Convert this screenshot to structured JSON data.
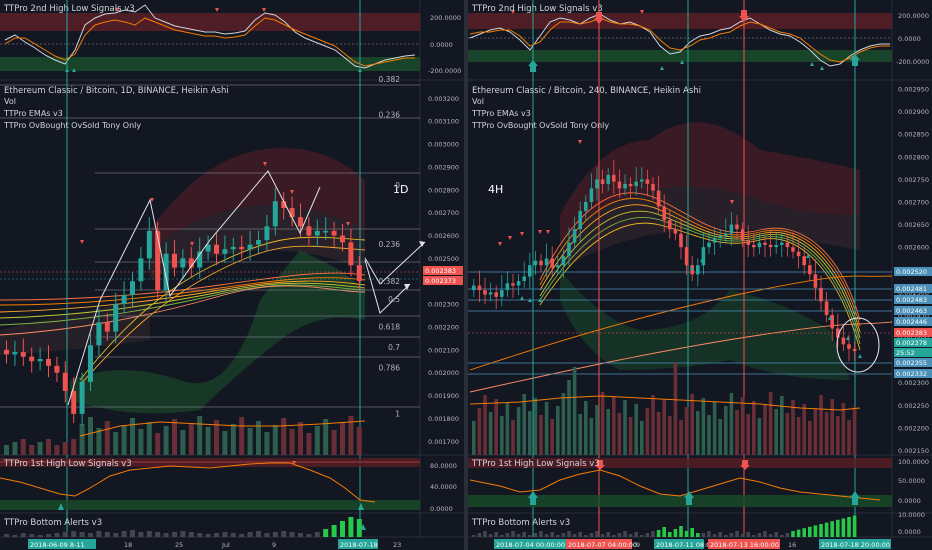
{
  "left": {
    "top_indicator": "TTPro 2nd High Low Signals v3",
    "top_axis": [
      "200.0000",
      "0.0000",
      "-200.0000"
    ],
    "title": "Ethereum Classic / Bitcoin, 1D, BINANCE, Heikin Ashi",
    "studies": [
      "Vol",
      "TTPro EMAs v3",
      "TTPro OvBought OvSold Tony Only"
    ],
    "timeframe": "1D",
    "price_axis": [
      "0.003200",
      "0.003100",
      "0.003000",
      "0.002900",
      "0.002800",
      "0.002700",
      "0.002600",
      "0.002500",
      "0.002400",
      "0.002300",
      "0.002200",
      "0.002100",
      "0.002000",
      "0.001900",
      "0.001800",
      "0.001700"
    ],
    "fib_levels": [
      {
        "label": "0.382",
        "value": 0.003262
      },
      {
        "label": "0.236",
        "value": 0.003108
      },
      {
        "label": "0",
        "value": 0.0028
      },
      {
        "label": "0.236",
        "value": 0.00254
      },
      {
        "label": "0.382",
        "value": 0.00238
      },
      {
        "label": "0.5",
        "value": 0.0023
      },
      {
        "label": "0.618",
        "value": 0.00218
      },
      {
        "label": "0.7",
        "value": 0.00209
      },
      {
        "label": "0.786",
        "value": 0.002
      },
      {
        "label": "1",
        "value": 0.0018
      }
    ],
    "price_tags": [
      "0.002383",
      "0.002373"
    ],
    "bottom_indicator_1": "TTPro 1st High Low Signals v3",
    "bottom_axis_1": [
      "80.0000",
      "40.0000",
      "0.0000"
    ],
    "bottom_indicator_2": "TTPro Bottom Alerts v3",
    "time_labels": [
      {
        "text": "2018-06-09 8-11",
        "highlight": true
      },
      {
        "text": "18",
        "highlight": false
      },
      {
        "text": "25",
        "highlight": false
      },
      {
        "text": "Jul",
        "highlight": false
      },
      {
        "text": "9",
        "highlight": false
      },
      {
        "text": "2018-07-18",
        "highlight": true
      },
      {
        "text": "23",
        "highlight": false
      }
    ]
  },
  "right": {
    "top_indicator": "TTPro 2nd High Low Signals v3",
    "top_axis": [
      "200.0000",
      "0.0000",
      "-200.0000"
    ],
    "title": "Ethereum Classic / Bitcoin, 240, BINANCE, Heikin Ashi",
    "studies": [
      "Vol",
      "TTPro EMAs v3",
      "TTPro OvBought OvSold Tony Only"
    ],
    "timeframe": "4H",
    "price_axis": [
      "0.002950",
      "0.002900",
      "0.002850",
      "0.002800",
      "0.002750",
      "0.002700",
      "0.002650",
      "0.002600",
      "0.002550",
      "0.002500",
      "0.002450",
      "0.002400",
      "0.002350",
      "0.002300",
      "0.002250",
      "0.002200",
      "0.002150"
    ],
    "price_tags": [
      {
        "text": "0.002520",
        "color": "#4a90b8"
      },
      {
        "text": "0.002481",
        "color": "#4a90b8"
      },
      {
        "text": "0.002483",
        "color": "#4a90b8"
      },
      {
        "text": "0.002463",
        "color": "#4a90b8"
      },
      {
        "text": "0.002446",
        "color": "#4a90b8"
      },
      {
        "text": "0.002383",
        "color": "#ef5350"
      },
      {
        "text": "0.002378",
        "color": "#26a69a"
      },
      {
        "text": "25:52",
        "color": "#26a69a"
      },
      {
        "text": "0.002355",
        "color": "#4a90b8"
      },
      {
        "text": "0.002332",
        "color": "#4a90b8"
      }
    ],
    "bottom_indicator_1": "TTPro 1st High Low Signals v3",
    "bottom_axis_1": [
      "100.0000",
      "50.0000",
      "0.0000"
    ],
    "bottom_indicator_2": "TTPro Bottom Alerts v3",
    "bottom_axis_2": [
      "10.0000",
      "0.0000"
    ],
    "time_labels": [
      {
        "text": "2018-07-04 00:00:00",
        "color": "#26a69a"
      },
      {
        "text": "2018-07-07 04:00:00",
        "color": "#ef5350"
      },
      {
        "text": "9",
        "color": ""
      },
      {
        "text": "2018-07-11 08:00",
        "color": "#26a69a"
      },
      {
        "text": "2018-07-13 16:00:00",
        "color": "#ef5350"
      },
      {
        "text": "16",
        "color": ""
      },
      {
        "text": "2018-07-18 20:00:00",
        "color": "#26a69a"
      }
    ]
  },
  "chart_data": [
    {
      "type": "candlestick",
      "title": "Ethereum Classic / Bitcoin, 1D, BINANCE, Heikin Ashi",
      "ylim": [
        0.00164,
        0.00328
      ],
      "close": [
        0.00208,
        0.00209,
        0.00207,
        0.00205,
        0.00206,
        0.00203,
        0.002,
        0.00192,
        0.00182,
        0.00196,
        0.00212,
        0.00222,
        0.00218,
        0.0023,
        0.00234,
        0.0024,
        0.0025,
        0.00262,
        0.00236,
        0.00252,
        0.00246,
        0.0025,
        0.00246,
        0.00253,
        0.00256,
        0.00252,
        0.00254,
        0.00255,
        0.00254,
        0.00256,
        0.00258,
        0.00264,
        0.00275,
        0.00272,
        0.00268,
        0.00264,
        0.0026,
        0.00262,
        0.00262,
        0.0026,
        0.00257,
        0.00247,
        0.0024
      ]
    },
    {
      "type": "candlestick",
      "title": "Ethereum Classic / Bitcoin, 240, BINANCE, Heikin Ashi",
      "ylim": [
        0.00214,
        0.00297
      ],
      "close": [
        0.002515,
        0.002505,
        0.002495,
        0.0025,
        0.00249,
        0.002505,
        0.00252,
        0.002515,
        0.002525,
        0.002535,
        0.00256,
        0.00257,
        0.00256,
        0.002575,
        0.002555,
        0.00256,
        0.00258,
        0.00261,
        0.00264,
        0.00268,
        0.0027,
        0.00273,
        0.00275,
        0.00274,
        0.00276,
        0.002745,
        0.00273,
        0.00274,
        0.002735,
        0.002745,
        0.00275,
        0.00274,
        0.002725,
        0.00269,
        0.00266,
        0.00264,
        0.00263,
        0.0026,
        0.00256,
        0.00254,
        0.00256,
        0.0026,
        0.00261,
        0.00262,
        0.002625,
        0.00263,
        0.00265,
        0.00264,
        0.002615,
        0.002605,
        0.0026,
        0.00261,
        0.002605,
        0.0026,
        0.002605,
        0.00261,
        0.0026,
        0.00259,
        0.00258,
        0.00256,
        0.00254,
        0.00251,
        0.00248,
        0.00245,
        0.00242,
        0.0024,
        0.002385,
        0.002375,
        0.00237
      ]
    }
  ]
}
